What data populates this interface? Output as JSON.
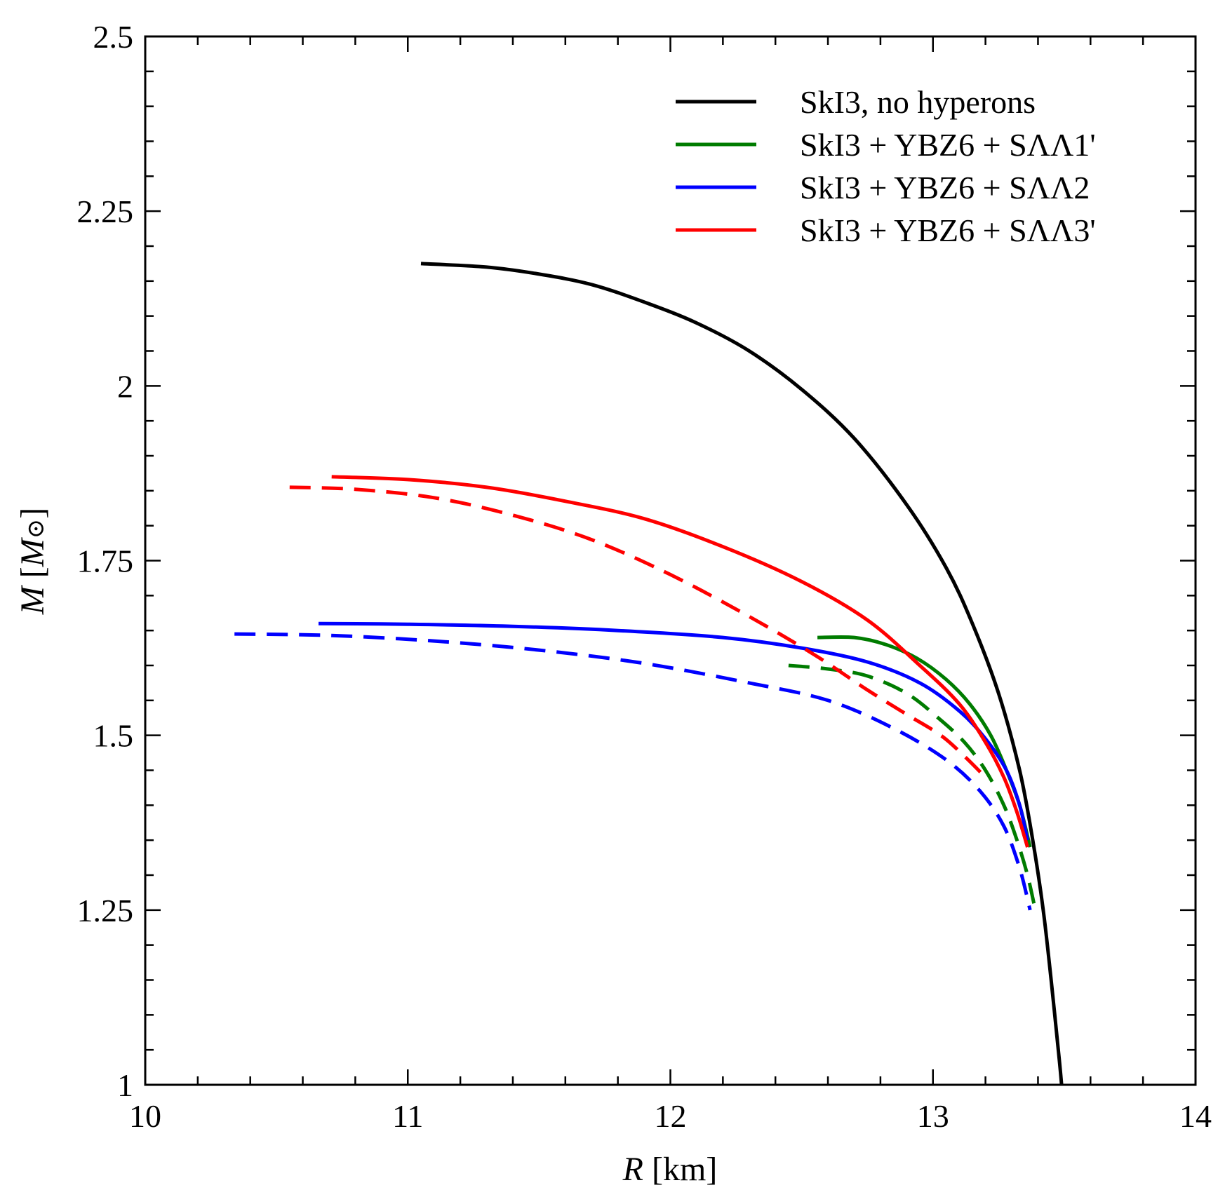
{
  "chart_data": {
    "type": "line",
    "title": "",
    "xlabel": {
      "italic": "R",
      "rest": " [km]"
    },
    "ylabel": {
      "italic": "M",
      "bracket_open": " [",
      "italic_sub": "M",
      "sun": "⊙",
      "bracket_close": "]"
    },
    "xlim": [
      10,
      14
    ],
    "ylim": [
      1,
      2.5
    ],
    "x_ticks": [
      10,
      11,
      12,
      13,
      14
    ],
    "x_tick_labels": [
      "10",
      "11",
      "12",
      "13",
      "14"
    ],
    "x_minor_step": 0.2,
    "y_ticks": [
      1,
      1.25,
      1.5,
      1.75,
      2,
      2.25,
      2.5
    ],
    "y_tick_labels": [
      "1",
      "1.25",
      "1.5",
      "1.75",
      "2",
      "2.25",
      "2.5"
    ],
    "y_minor_step": 0.05,
    "grid": false,
    "legend_position": "top-right",
    "series": [
      {
        "name": "SkI3, no hyperons",
        "color": "#000000",
        "style": "solid",
        "in_legend": true,
        "points": [
          [
            11.05,
            2.175
          ],
          [
            11.3,
            2.17
          ],
          [
            11.5,
            2.16
          ],
          [
            11.7,
            2.145
          ],
          [
            11.9,
            2.12
          ],
          [
            12.1,
            2.09
          ],
          [
            12.3,
            2.05
          ],
          [
            12.5,
            1.995
          ],
          [
            12.7,
            1.925
          ],
          [
            12.9,
            1.83
          ],
          [
            13.05,
            1.74
          ],
          [
            13.15,
            1.66
          ],
          [
            13.25,
            1.56
          ],
          [
            13.33,
            1.45
          ],
          [
            13.38,
            1.35
          ],
          [
            13.42,
            1.25
          ],
          [
            13.45,
            1.15
          ],
          [
            13.48,
            1.04
          ],
          [
            13.49,
            1.0
          ]
        ]
      },
      {
        "name": "SkI3 + YBZ6 + SΛΛ1'",
        "color": "#007c00",
        "style": "solid",
        "in_legend": true,
        "points": [
          [
            12.56,
            1.64
          ],
          [
            12.7,
            1.64
          ],
          [
            12.82,
            1.63
          ],
          [
            12.94,
            1.61
          ],
          [
            13.05,
            1.58
          ],
          [
            13.14,
            1.545
          ],
          [
            13.22,
            1.5
          ],
          [
            13.28,
            1.45
          ],
          [
            13.33,
            1.4
          ],
          [
            13.37,
            1.34
          ]
        ]
      },
      {
        "name": "SkI3 + YBZ6 + SΛΛ1' (dashed)",
        "color": "#007c00",
        "style": "dashed",
        "in_legend": false,
        "points": [
          [
            12.45,
            1.6
          ],
          [
            12.6,
            1.595
          ],
          [
            12.75,
            1.585
          ],
          [
            12.9,
            1.56
          ],
          [
            13.02,
            1.525
          ],
          [
            13.12,
            1.49
          ],
          [
            13.2,
            1.45
          ],
          [
            13.27,
            1.4
          ],
          [
            13.32,
            1.35
          ],
          [
            13.36,
            1.3
          ],
          [
            13.39,
            1.25
          ]
        ]
      },
      {
        "name": "SkI3 + YBZ6 + SΛΛ2",
        "color": "#0000ff",
        "style": "solid",
        "in_legend": true,
        "points": [
          [
            10.66,
            1.66
          ],
          [
            11.0,
            1.659
          ],
          [
            11.4,
            1.656
          ],
          [
            11.8,
            1.65
          ],
          [
            12.2,
            1.64
          ],
          [
            12.5,
            1.625
          ],
          [
            12.75,
            1.605
          ],
          [
            12.95,
            1.575
          ],
          [
            13.1,
            1.535
          ],
          [
            13.2,
            1.495
          ],
          [
            13.28,
            1.45
          ],
          [
            13.33,
            1.4
          ],
          [
            13.36,
            1.35
          ]
        ]
      },
      {
        "name": "SkI3 + YBZ6 + SΛΛ2 (dashed)",
        "color": "#0000ff",
        "style": "dashed",
        "in_legend": false,
        "points": [
          [
            10.34,
            1.645
          ],
          [
            10.7,
            1.643
          ],
          [
            11.1,
            1.635
          ],
          [
            11.5,
            1.622
          ],
          [
            11.9,
            1.603
          ],
          [
            12.3,
            1.575
          ],
          [
            12.6,
            1.55
          ],
          [
            12.85,
            1.51
          ],
          [
            13.05,
            1.465
          ],
          [
            13.18,
            1.42
          ],
          [
            13.27,
            1.37
          ],
          [
            13.33,
            1.31
          ],
          [
            13.37,
            1.25
          ]
        ]
      },
      {
        "name": "SkI3 + YBZ6 + SΛΛ3'",
        "color": "#ff0000",
        "style": "solid",
        "in_legend": true,
        "points": [
          [
            10.71,
            1.87
          ],
          [
            11.0,
            1.866
          ],
          [
            11.3,
            1.855
          ],
          [
            11.6,
            1.835
          ],
          [
            11.9,
            1.81
          ],
          [
            12.2,
            1.77
          ],
          [
            12.5,
            1.72
          ],
          [
            12.75,
            1.665
          ],
          [
            12.95,
            1.6
          ],
          [
            13.1,
            1.545
          ],
          [
            13.2,
            1.49
          ],
          [
            13.27,
            1.44
          ],
          [
            13.32,
            1.39
          ],
          [
            13.36,
            1.34
          ]
        ]
      },
      {
        "name": "SkI3 + YBZ6 + SΛΛ3' (dashed)",
        "color": "#ff0000",
        "style": "dashed",
        "in_legend": false,
        "points": [
          [
            10.55,
            1.855
          ],
          [
            10.8,
            1.852
          ],
          [
            11.1,
            1.84
          ],
          [
            11.4,
            1.815
          ],
          [
            11.7,
            1.78
          ],
          [
            12.0,
            1.73
          ],
          [
            12.3,
            1.67
          ],
          [
            12.55,
            1.615
          ],
          [
            12.75,
            1.565
          ],
          [
            12.9,
            1.53
          ],
          [
            13.03,
            1.5
          ],
          [
            13.12,
            1.47
          ],
          [
            13.2,
            1.44
          ]
        ]
      }
    ]
  }
}
